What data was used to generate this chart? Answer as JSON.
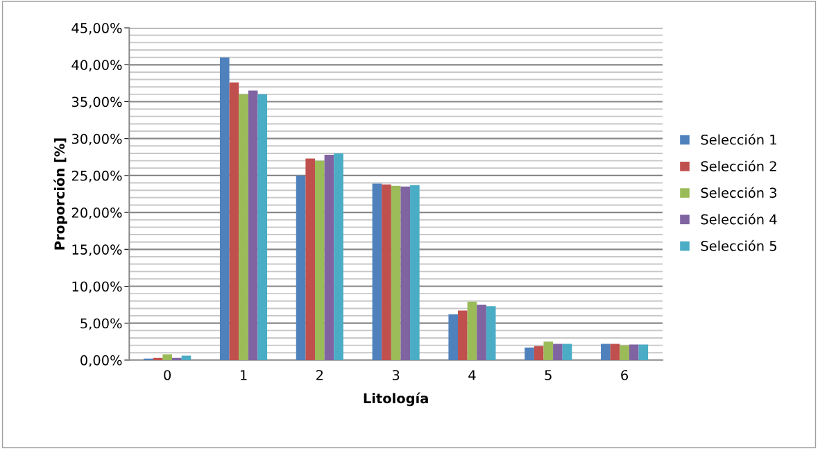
{
  "chart_data": {
    "type": "bar",
    "xlabel": "Litología",
    "ylabel": "Proporción [%]",
    "categories": [
      "0",
      "1",
      "2",
      "3",
      "4",
      "5",
      "6"
    ],
    "series": [
      {
        "name": "Selección 1",
        "color": "#4f81bd",
        "values": [
          0.2,
          41.0,
          25.0,
          23.9,
          6.2,
          1.7,
          2.2
        ]
      },
      {
        "name": "Selección 2",
        "color": "#c0504d",
        "values": [
          0.3,
          37.6,
          27.3,
          23.8,
          6.7,
          1.9,
          2.2
        ]
      },
      {
        "name": "Selección 3",
        "color": "#9bbb59",
        "values": [
          0.8,
          36.0,
          27.0,
          23.6,
          7.9,
          2.5,
          2.0
        ]
      },
      {
        "name": "Selección 4",
        "color": "#8064a2",
        "values": [
          0.3,
          36.5,
          27.8,
          23.5,
          7.5,
          2.2,
          2.1
        ]
      },
      {
        "name": "Selección 5",
        "color": "#4bacc6",
        "values": [
          0.6,
          36.0,
          28.0,
          23.7,
          7.3,
          2.2,
          2.1
        ]
      }
    ],
    "ylim": [
      0,
      45
    ],
    "yticks": [
      {
        "value": 0,
        "label": "0,00%"
      },
      {
        "value": 1,
        "label": null
      },
      {
        "value": 2,
        "label": null
      },
      {
        "value": 3,
        "label": null
      },
      {
        "value": 4,
        "label": null
      },
      {
        "value": 5,
        "label": "5,00%"
      },
      {
        "value": 6,
        "label": null
      },
      {
        "value": 7,
        "label": null
      },
      {
        "value": 8,
        "label": null
      },
      {
        "value": 9,
        "label": null
      },
      {
        "value": 10,
        "label": "10,00%"
      },
      {
        "value": 11,
        "label": null
      },
      {
        "value": 12,
        "label": null
      },
      {
        "value": 13,
        "label": null
      },
      {
        "value": 14,
        "label": null
      },
      {
        "value": 15,
        "label": "15,00%"
      },
      {
        "value": 16,
        "label": null
      },
      {
        "value": 17,
        "label": null
      },
      {
        "value": 18,
        "label": null
      },
      {
        "value": 19,
        "label": null
      },
      {
        "value": 20,
        "label": "20,00%"
      },
      {
        "value": 21,
        "label": null
      },
      {
        "value": 22,
        "label": null
      },
      {
        "value": 23,
        "label": null
      },
      {
        "value": 24,
        "label": null
      },
      {
        "value": 25,
        "label": "25,00%"
      },
      {
        "value": 26,
        "label": null
      },
      {
        "value": 27,
        "label": null
      },
      {
        "value": 28,
        "label": null
      },
      {
        "value": 29,
        "label": null
      },
      {
        "value": 30,
        "label": "30,00%"
      },
      {
        "value": 31,
        "label": null
      },
      {
        "value": 32,
        "label": null
      },
      {
        "value": 33,
        "label": null
      },
      {
        "value": 34,
        "label": null
      },
      {
        "value": 35,
        "label": "35,00%"
      },
      {
        "value": 36,
        "label": null
      },
      {
        "value": 37,
        "label": null
      },
      {
        "value": 38,
        "label": null
      },
      {
        "value": 39,
        "label": null
      },
      {
        "value": 40,
        "label": "40,00%"
      },
      {
        "value": 41,
        "label": null
      },
      {
        "value": 42,
        "label": null
      },
      {
        "value": 43,
        "label": null
      },
      {
        "value": 44,
        "label": null
      },
      {
        "value": 45,
        "label": "45,00%"
      }
    ],
    "grid": "y",
    "legend": "right"
  }
}
